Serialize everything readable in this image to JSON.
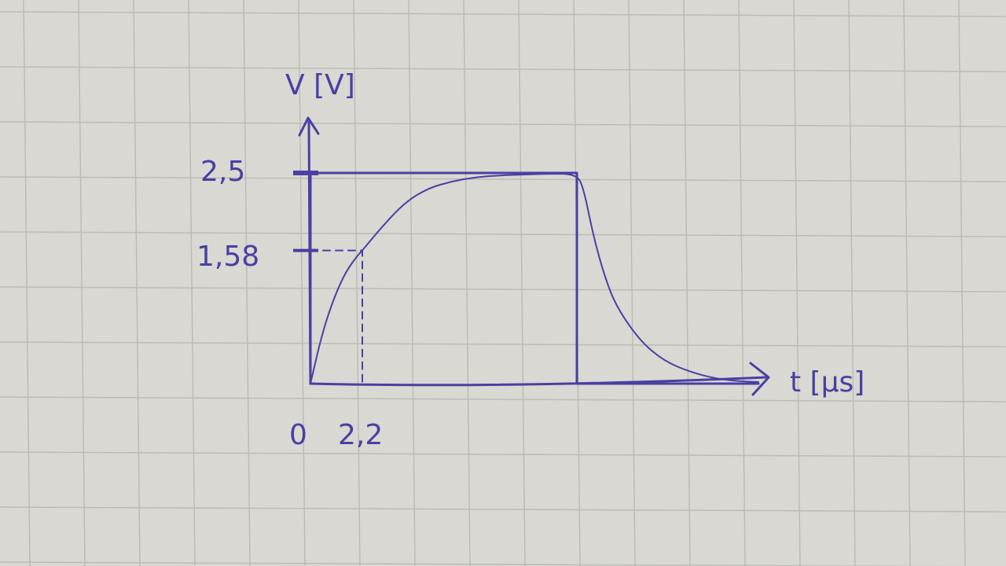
{
  "chart_data": {
    "type": "line",
    "xlabel": "t [μs]",
    "ylabel": "V [V]",
    "x_ticks": [
      {
        "value": 0,
        "label": "0"
      },
      {
        "value": 2.2,
        "label": "2,2"
      }
    ],
    "y_ticks": [
      {
        "value": 2.5,
        "label": "2,5"
      },
      {
        "value": 1.58,
        "label": "1,58"
      }
    ],
    "xlim": [
      0,
      22
    ],
    "ylim": [
      0,
      3.3
    ],
    "series": [
      {
        "kind": "square-pulse",
        "points": [
          [
            0,
            0
          ],
          [
            0,
            2.5
          ],
          [
            11.3,
            2.5
          ],
          [
            11.3,
            0
          ],
          [
            19,
            0
          ]
        ]
      },
      {
        "kind": "rc-response",
        "x": [
          0,
          0.5,
          1,
          1.5,
          2,
          2.2,
          3,
          4,
          5,
          6,
          7,
          8,
          9,
          10,
          11.3,
          11.6,
          12,
          12.5,
          13,
          14,
          15,
          16,
          17,
          18,
          19
        ],
        "y": [
          0,
          0.6,
          1.02,
          1.33,
          1.52,
          1.58,
          1.85,
          2.15,
          2.32,
          2.4,
          2.45,
          2.47,
          2.48,
          2.49,
          2.49,
          2.3,
          1.75,
          1.25,
          0.9,
          0.5,
          0.27,
          0.15,
          0.07,
          0.03,
          0.02
        ]
      }
    ],
    "guides": [
      {
        "kind": "dashed",
        "points": [
          [
            0,
            1.58
          ],
          [
            2.2,
            1.58
          ],
          [
            2.2,
            0
          ]
        ]
      }
    ],
    "colors": {
      "ink": "#4a3fa3",
      "paper": "#d9d8d2",
      "grid": "#bcbcb7"
    }
  }
}
